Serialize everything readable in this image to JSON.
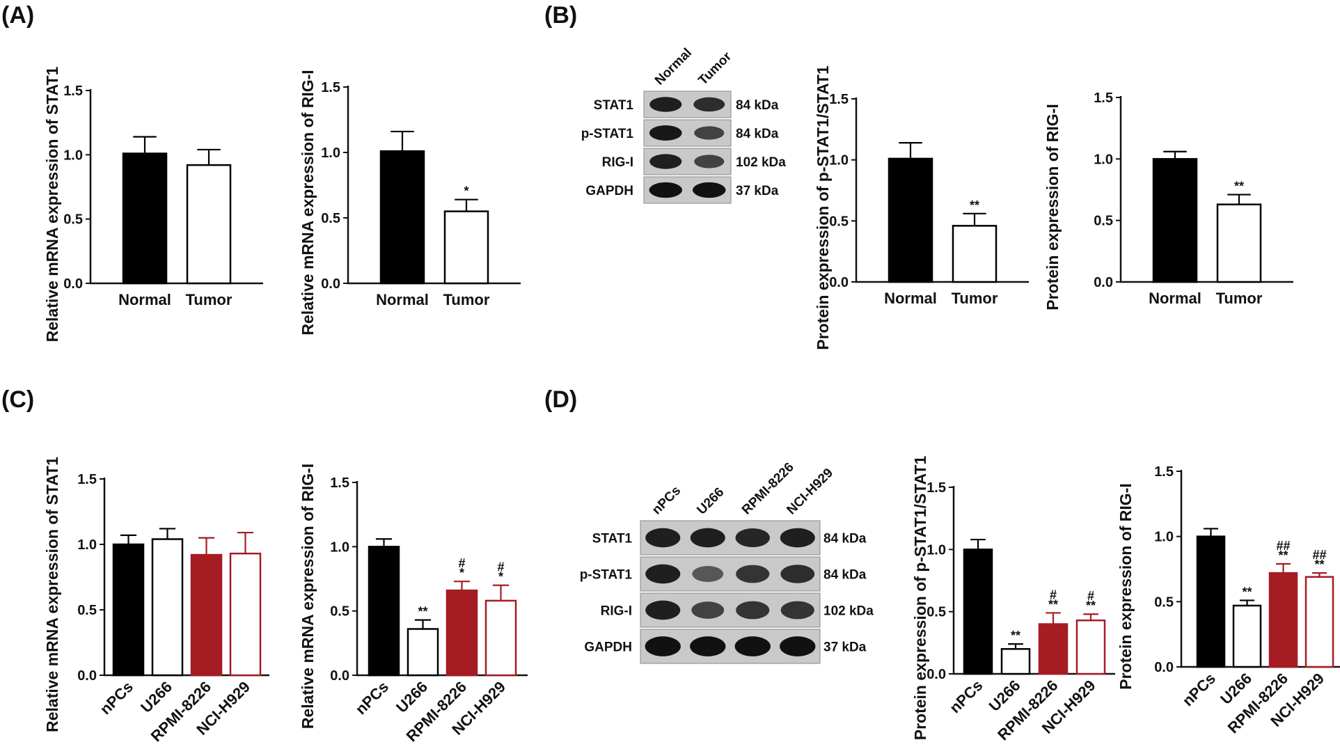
{
  "colors": {
    "black": "#000000",
    "red": "#a51c22",
    "white": "#ffffff"
  },
  "panel_labels": [
    "(A)",
    "(B)",
    "(C)",
    "(D)"
  ],
  "chart_data": [
    {
      "id": "A1",
      "type": "bar",
      "ylabel": "Relative mRNA expression of STAT1",
      "categories": [
        "Normal",
        "Tumor"
      ],
      "values": [
        1.01,
        0.92
      ],
      "errors": [
        0.13,
        0.12
      ],
      "styles": [
        "black",
        "white"
      ],
      "annotations": [
        [],
        []
      ],
      "ylim": [
        0,
        1.5
      ],
      "yticks": [
        "0.0",
        "0.5",
        "1.0",
        "1.5"
      ]
    },
    {
      "id": "A2",
      "type": "bar",
      "ylabel": "Relative mRNA expression of RIG-I",
      "categories": [
        "Normal",
        "Tumor"
      ],
      "values": [
        1.01,
        0.55
      ],
      "errors": [
        0.15,
        0.09
      ],
      "styles": [
        "black",
        "white"
      ],
      "annotations": [
        [],
        [
          "*"
        ]
      ],
      "ylim": [
        0,
        1.5
      ],
      "yticks": [
        "0.0",
        "0.5",
        "1.0",
        "1.5"
      ]
    },
    {
      "id": "B1",
      "type": "bar",
      "ylabel": "Protein expression of p-STAT1/STAT1",
      "categories": [
        "Normal",
        "Tumor"
      ],
      "values": [
        1.01,
        0.46
      ],
      "errors": [
        0.13,
        0.1
      ],
      "styles": [
        "black",
        "white"
      ],
      "annotations": [
        [],
        [
          "**"
        ]
      ],
      "ylim": [
        0,
        1.5
      ],
      "yticks": [
        "0.0",
        "0.5",
        "1.0",
        "1.5"
      ]
    },
    {
      "id": "B2",
      "type": "bar",
      "ylabel": "Protein expression of RIG-I",
      "categories": [
        "Normal",
        "Tumor"
      ],
      "values": [
        1.0,
        0.63
      ],
      "errors": [
        0.06,
        0.08
      ],
      "styles": [
        "black",
        "white"
      ],
      "annotations": [
        [],
        [
          "**"
        ]
      ],
      "ylim": [
        0,
        1.5
      ],
      "yticks": [
        "0.0",
        "0.5",
        "1.0",
        "1.5"
      ]
    },
    {
      "id": "C1",
      "type": "bar",
      "ylabel": "Relative mRNA expression of STAT1",
      "categories": [
        "nPCs",
        "U266",
        "RPMI-8226",
        "NCI-H929"
      ],
      "values": [
        1.0,
        1.04,
        0.92,
        0.93
      ],
      "errors": [
        0.07,
        0.08,
        0.13,
        0.16
      ],
      "styles": [
        "black",
        "white",
        "red",
        "redoutline"
      ],
      "annotations": [
        [],
        [],
        [],
        []
      ],
      "ylim": [
        0,
        1.5
      ],
      "yticks": [
        "0.0",
        "0.5",
        "1.0",
        "1.5"
      ]
    },
    {
      "id": "C2",
      "type": "bar",
      "ylabel": "Relative mRNA expression of RIG-I",
      "categories": [
        "nPCs",
        "U266",
        "RPMI-8226",
        "NCI-H929"
      ],
      "values": [
        1.0,
        0.36,
        0.66,
        0.58
      ],
      "errors": [
        0.06,
        0.07,
        0.07,
        0.12
      ],
      "styles": [
        "black",
        "white",
        "red",
        "redoutline"
      ],
      "annotations": [
        [],
        [
          "**"
        ],
        [
          "#",
          "*"
        ],
        [
          "#",
          "*"
        ]
      ],
      "ylim": [
        0,
        1.5
      ],
      "yticks": [
        "0.0",
        "0.5",
        "1.0",
        "1.5"
      ]
    },
    {
      "id": "D1",
      "type": "bar",
      "ylabel": "Protein expression of p-STAT1/STAT1",
      "categories": [
        "nPCs",
        "U266",
        "RPMI-8226",
        "NCI-H929"
      ],
      "values": [
        1.0,
        0.2,
        0.4,
        0.43
      ],
      "errors": [
        0.08,
        0.04,
        0.09,
        0.05
      ],
      "styles": [
        "black",
        "white",
        "red",
        "redoutline"
      ],
      "annotations": [
        [],
        [
          "**"
        ],
        [
          "#",
          "**"
        ],
        [
          "#",
          "**"
        ]
      ],
      "ylim": [
        0,
        1.5
      ],
      "yticks": [
        "0.0",
        "0.5",
        "1.0",
        "1.5"
      ]
    },
    {
      "id": "D2",
      "type": "bar",
      "ylabel": "Protein expression of RIG-I",
      "categories": [
        "nPCs",
        "U266",
        "RPMI-8226",
        "NCI-H929"
      ],
      "values": [
        1.0,
        0.47,
        0.72,
        0.69
      ],
      "errors": [
        0.06,
        0.04,
        0.07,
        0.03
      ],
      "styles": [
        "black",
        "white",
        "red",
        "redoutline"
      ],
      "annotations": [
        [],
        [
          "**"
        ],
        [
          "##",
          "**"
        ],
        [
          "##",
          "**"
        ]
      ],
      "ylim": [
        0,
        1.5
      ],
      "yticks": [
        "0.0",
        "0.5",
        "1.0",
        "1.5"
      ]
    }
  ],
  "blots": [
    {
      "id": "B",
      "lanes": [
        "Normal",
        "Tumor"
      ],
      "rows": [
        {
          "label": "STAT1",
          "kda": "84 kDa",
          "intensity": [
            0.85,
            0.75
          ]
        },
        {
          "label": "p-STAT1",
          "kda": "84 kDa",
          "intensity": [
            0.9,
            0.6
          ]
        },
        {
          "label": "RIG-I",
          "kda": "102 kDa",
          "intensity": [
            0.85,
            0.6
          ]
        },
        {
          "label": "GAPDH",
          "kda": "37 kDa",
          "intensity": [
            0.95,
            0.95
          ]
        }
      ]
    },
    {
      "id": "D",
      "lanes": [
        "nPCs",
        "U266",
        "RPMI-8226",
        "NCI-H929"
      ],
      "rows": [
        {
          "label": "STAT1",
          "kda": "84 kDa",
          "intensity": [
            0.85,
            0.85,
            0.8,
            0.85
          ]
        },
        {
          "label": "p-STAT1",
          "kda": "84 kDa",
          "intensity": [
            0.85,
            0.45,
            0.7,
            0.75
          ]
        },
        {
          "label": "RIG-I",
          "kda": "102 kDa",
          "intensity": [
            0.85,
            0.6,
            0.7,
            0.7
          ]
        },
        {
          "label": "GAPDH",
          "kda": "37 kDa",
          "intensity": [
            0.95,
            0.95,
            0.95,
            0.95
          ]
        }
      ]
    }
  ]
}
